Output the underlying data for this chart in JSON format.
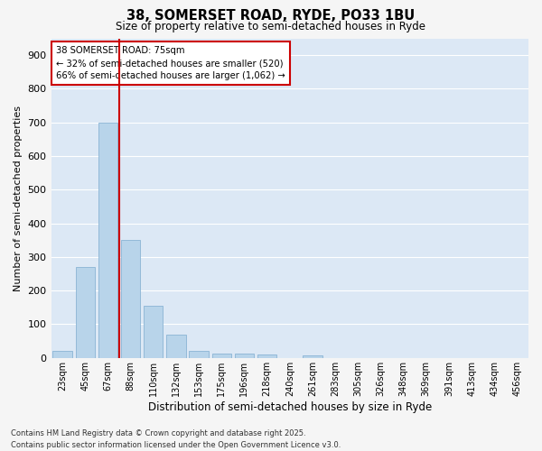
{
  "title": "38, SOMERSET ROAD, RYDE, PO33 1BU",
  "subtitle": "Size of property relative to semi-detached houses in Ryde",
  "xlabel": "Distribution of semi-detached houses by size in Ryde",
  "ylabel": "Number of semi-detached properties",
  "categories": [
    "23sqm",
    "45sqm",
    "67sqm",
    "88sqm",
    "110sqm",
    "132sqm",
    "153sqm",
    "175sqm",
    "196sqm",
    "218sqm",
    "240sqm",
    "261sqm",
    "283sqm",
    "305sqm",
    "326sqm",
    "348sqm",
    "369sqm",
    "391sqm",
    "413sqm",
    "434sqm",
    "456sqm"
  ],
  "values": [
    20,
    270,
    700,
    350,
    155,
    70,
    22,
    12,
    12,
    10,
    0,
    8,
    0,
    0,
    0,
    0,
    0,
    0,
    0,
    0,
    0
  ],
  "bar_color": "#b8d4ea",
  "bar_edge_color": "#8ab4d4",
  "vline_color": "#cc0000",
  "vline_x_index": 2.5,
  "annotation_box_color": "#cc0000",
  "annotation_text_line1": "38 SOMERSET ROAD: 75sqm",
  "annotation_text_line2": "← 32% of semi-detached houses are smaller (520)",
  "annotation_text_line3": "66% of semi-detached houses are larger (1,062) →",
  "ylim": [
    0,
    950
  ],
  "yticks": [
    0,
    100,
    200,
    300,
    400,
    500,
    600,
    700,
    800,
    900
  ],
  "background_color": "#dce8f5",
  "grid_color": "#ffffff",
  "fig_facecolor": "#f5f5f5",
  "footer_line1": "Contains HM Land Registry data © Crown copyright and database right 2025.",
  "footer_line2": "Contains public sector information licensed under the Open Government Licence v3.0."
}
